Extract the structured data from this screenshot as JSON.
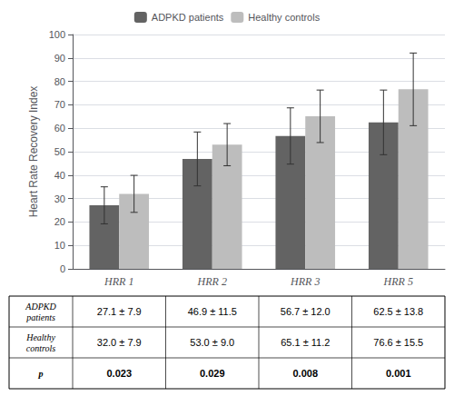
{
  "chart_data": {
    "type": "bar",
    "categories": [
      "HRR 1",
      "HRR 2",
      "HRR 3",
      "HRR 5"
    ],
    "series": [
      {
        "name": "ADPKD patients",
        "color": "#636363",
        "values": [
          27.1,
          46.9,
          56.7,
          62.5
        ],
        "errors": [
          7.9,
          11.5,
          12.0,
          13.8
        ]
      },
      {
        "name": "Healthy controls",
        "color": "#bdbdbd",
        "values": [
          32.0,
          53.0,
          65.1,
          76.6
        ],
        "errors": [
          7.9,
          9.0,
          11.2,
          15.5
        ]
      }
    ],
    "ylabel": "Heart Rate Recovery Index",
    "ylim": [
      0,
      100
    ],
    "yticks": [
      0,
      10,
      20,
      30,
      40,
      50,
      60,
      70,
      80,
      90,
      100
    ],
    "grid": true,
    "legend": "top",
    "table": {
      "rows": [
        {
          "label": "ADPKD\npatients",
          "cells": [
            "27.1 ± 7.9",
            "46.9 ± 11.5",
            "56.7 ± 12.0",
            "62.5 ± 13.8"
          ]
        },
        {
          "label": "Healthy\ncontrols",
          "cells": [
            "32.0 ± 7.9",
            "53.0 ± 9.0",
            "65.1 ± 11.2",
            "76.6 ± 15.5"
          ]
        },
        {
          "label": "p",
          "cells": [
            "0.023",
            "0.029",
            "0.008",
            "0.001"
          ]
        }
      ]
    }
  }
}
